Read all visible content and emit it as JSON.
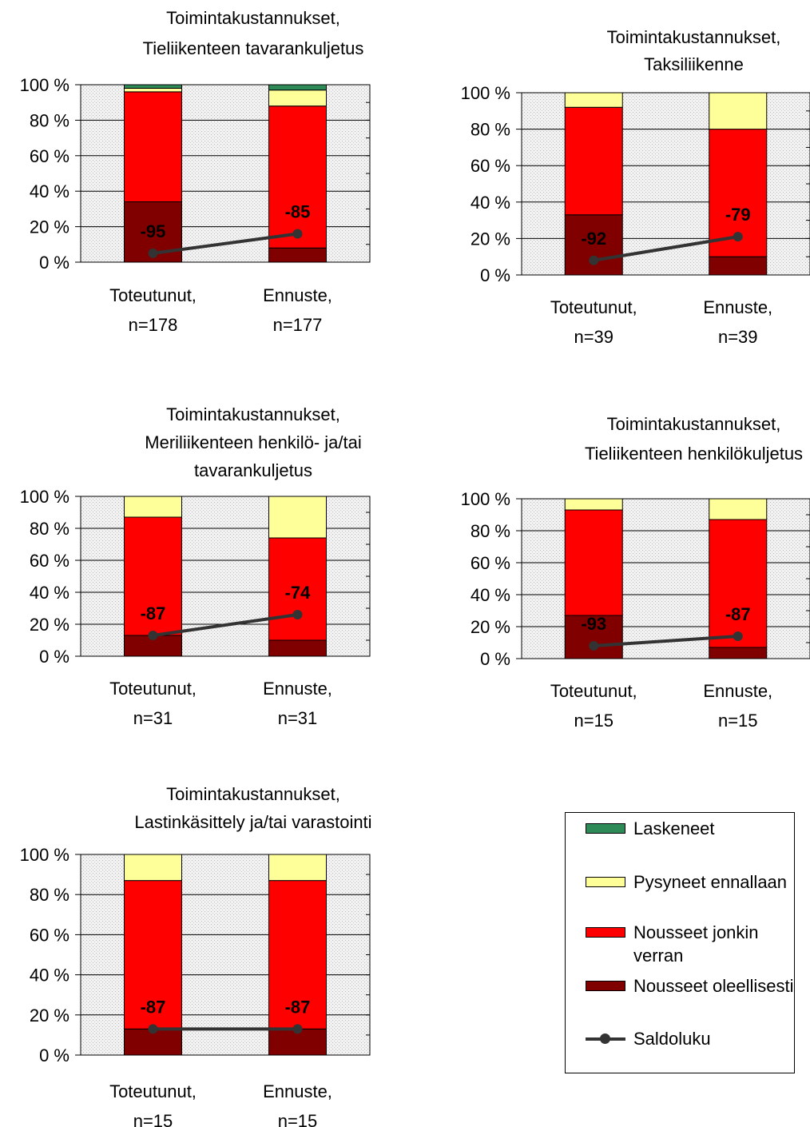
{
  "colors": {
    "Laskeneet": "#2e8b57",
    "Pysyneet ennallaan": "#ffff99",
    "Nousseet jonkin verran": "#ff0000",
    "Nousseet oleellisesti": "#800000",
    "Saldoluku": "#333333",
    "plot_bg": "#e6e6e6"
  },
  "legend": {
    "items": [
      {
        "label": "Laskeneet",
        "kind": "swatch"
      },
      {
        "label": "Pysyneet ennallaan",
        "kind": "swatch"
      },
      {
        "label": "Nousseet jonkin verran",
        "kind": "swatch"
      },
      {
        "label": "Nousseet oleellisesti",
        "kind": "swatch"
      },
      {
        "label": "Saldoluku",
        "kind": "line"
      }
    ]
  },
  "chart_data": [
    {
      "type": "bar",
      "stacked": true,
      "title_lines": [
        "Toimintakustannukset,",
        "Tieliikenteen tavarankuljetus"
      ],
      "categories": [
        [
          "Toteutunut,",
          "n=178"
        ],
        [
          "Ennuste,",
          "n=177"
        ]
      ],
      "ylim": [
        0,
        100
      ],
      "yticks": [
        "0 %",
        "20 %",
        "40 %",
        "60 %",
        "80 %",
        "100 %"
      ],
      "series": [
        {
          "name": "Nousseet oleellisesti",
          "values": [
            34,
            8
          ]
        },
        {
          "name": "Nousseet jonkin verran",
          "values": [
            62,
            80
          ]
        },
        {
          "name": "Pysyneet ennallaan",
          "values": [
            2,
            9
          ]
        },
        {
          "name": "Laskeneet",
          "values": [
            2,
            3
          ]
        }
      ],
      "saldoluku": [
        -95,
        -85
      ],
      "saldo_point_y": [
        5,
        16
      ],
      "grid": true
    },
    {
      "type": "bar",
      "stacked": true,
      "title_lines": [
        "Toimintakustannukset,",
        "Taksiliikenne"
      ],
      "categories": [
        [
          "Toteutunut,",
          "n=39"
        ],
        [
          "Ennuste,",
          "n=39"
        ]
      ],
      "ylim": [
        0,
        100
      ],
      "yticks": [
        "0 %",
        "20 %",
        "40 %",
        "60 %",
        "80 %",
        "100 %"
      ],
      "series": [
        {
          "name": "Nousseet oleellisesti",
          "values": [
            33,
            10
          ]
        },
        {
          "name": "Nousseet jonkin verran",
          "values": [
            59,
            70
          ]
        },
        {
          "name": "Pysyneet ennallaan",
          "values": [
            8,
            20
          ]
        },
        {
          "name": "Laskeneet",
          "values": [
            0,
            0
          ]
        }
      ],
      "saldoluku": [
        -92,
        -79
      ],
      "saldo_point_y": [
        8,
        21
      ],
      "grid": true
    },
    {
      "type": "bar",
      "stacked": true,
      "title_lines": [
        "Toimintakustannukset,",
        "Meriliikenteen henkilö- ja/tai",
        "tavarankuljetus"
      ],
      "categories": [
        [
          "Toteutunut,",
          "n=31"
        ],
        [
          "Ennuste,",
          "n=31"
        ]
      ],
      "ylim": [
        0,
        100
      ],
      "yticks": [
        "0 %",
        "20 %",
        "40 %",
        "60 %",
        "80 %",
        "100 %"
      ],
      "series": [
        {
          "name": "Nousseet oleellisesti",
          "values": [
            13,
            10
          ]
        },
        {
          "name": "Nousseet jonkin verran",
          "values": [
            74,
            64
          ]
        },
        {
          "name": "Pysyneet ennallaan",
          "values": [
            13,
            26
          ]
        },
        {
          "name": "Laskeneet",
          "values": [
            0,
            0
          ]
        }
      ],
      "saldoluku": [
        -87,
        -74
      ],
      "saldo_point_y": [
        13,
        26
      ],
      "grid": true
    },
    {
      "type": "bar",
      "stacked": true,
      "title_lines": [
        "Toimintakustannukset,",
        "Tieliikenteen henkilökuljetus"
      ],
      "categories": [
        [
          "Toteutunut,",
          "n=15"
        ],
        [
          "Ennuste,",
          "n=15"
        ]
      ],
      "ylim": [
        0,
        100
      ],
      "yticks": [
        "0 %",
        "20 %",
        "40 %",
        "60 %",
        "80 %",
        "100 %"
      ],
      "series": [
        {
          "name": "Nousseet oleellisesti",
          "values": [
            27,
            7
          ]
        },
        {
          "name": "Nousseet jonkin verran",
          "values": [
            66,
            80
          ]
        },
        {
          "name": "Pysyneet ennallaan",
          "values": [
            7,
            13
          ]
        },
        {
          "name": "Laskeneet",
          "values": [
            0,
            0
          ]
        }
      ],
      "saldoluku": [
        -93,
        -87
      ],
      "saldo_point_y": [
        8,
        14
      ],
      "grid": true
    },
    {
      "type": "bar",
      "stacked": true,
      "title_lines": [
        "Toimintakustannukset,",
        "Lastinkäsittely ja/tai varastointi"
      ],
      "categories": [
        [
          "Toteutunut,",
          "n=15"
        ],
        [
          "Ennuste,",
          "n=15"
        ]
      ],
      "ylim": [
        0,
        100
      ],
      "yticks": [
        "0 %",
        "20 %",
        "40 %",
        "60 %",
        "80 %",
        "100 %"
      ],
      "series": [
        {
          "name": "Nousseet oleellisesti",
          "values": [
            13,
            13
          ]
        },
        {
          "name": "Nousseet jonkin verran",
          "values": [
            74,
            74
          ]
        },
        {
          "name": "Pysyneet ennallaan",
          "values": [
            13,
            13
          ]
        },
        {
          "name": "Laskeneet",
          "values": [
            0,
            0
          ]
        }
      ],
      "saldoluku": [
        -87,
        -87
      ],
      "saldo_point_y": [
        13,
        13
      ],
      "grid": true
    }
  ]
}
